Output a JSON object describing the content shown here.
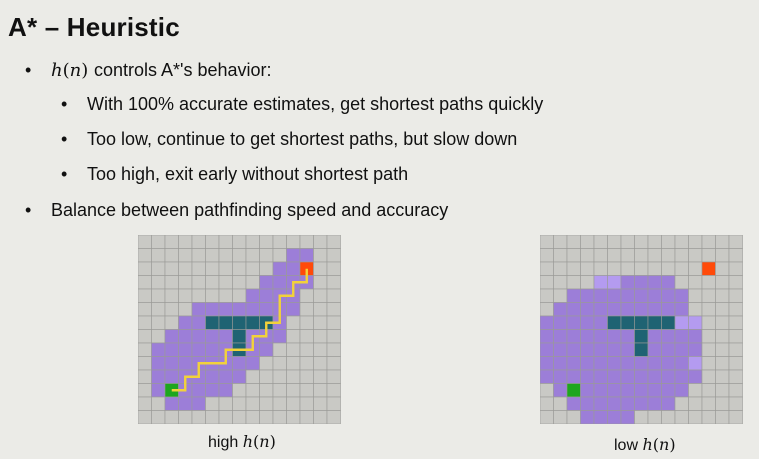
{
  "title": "A* – Heuristic",
  "bullets": {
    "b1_rest": " controls A*'s behavior:",
    "sub1": "With 100% accurate estimates, get shortest paths quickly",
    "sub2": "Too low, continue to get shortest paths, but slow down",
    "sub3": "Too high, exit early without shortest path",
    "b2": "Balance between pathfinding speed and accuracy"
  },
  "math": {
    "h": "h",
    "lp": "(",
    "n": "n",
    "rp": ")"
  },
  "captions": {
    "high_prefix": "high ",
    "low_prefix": "low "
  },
  "colors": {
    "background": "#ebebe7",
    "grid_cell": "#c9c9c5",
    "grid_line": "#9a9a96",
    "explored": "#9c7ed8",
    "explored_light": "#b49bf0",
    "wall": "#1f6373",
    "start": "#1ea61e",
    "goal": "#ff4a0a",
    "path": "#f2d23a"
  }
}
